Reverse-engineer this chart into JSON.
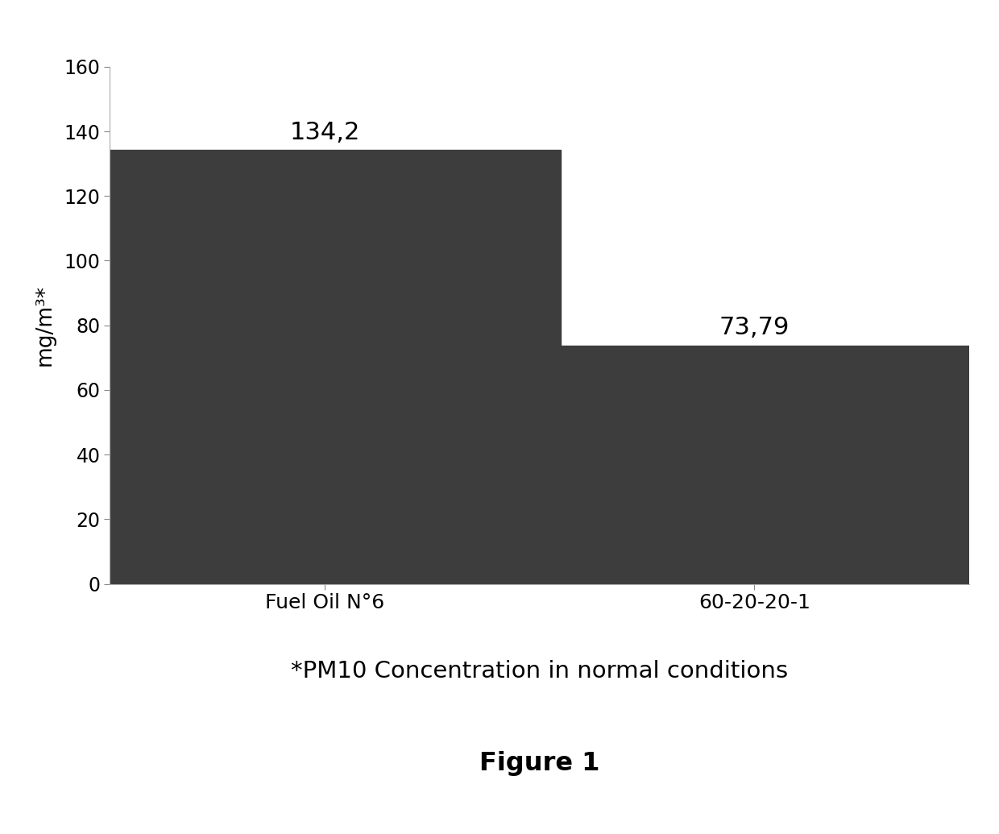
{
  "categories": [
    "Fuel Oil N°6",
    "60-20-20-1"
  ],
  "values": [
    134.2,
    73.79
  ],
  "bar_labels": [
    "134,2",
    "73,79"
  ],
  "bar_color": "#3d3d3d",
  "ylabel": "mg/m³*",
  "ylim": [
    0,
    160
  ],
  "yticks": [
    0,
    20,
    40,
    60,
    80,
    100,
    120,
    140,
    160
  ],
  "subtitle": "*PM10 Concentration in normal conditions",
  "figure_label": "Figure 1",
  "background_color": "#ffffff",
  "bar_width": 0.55,
  "x_positions": [
    0.25,
    0.75
  ],
  "xlim": [
    0,
    1
  ],
  "label_fontsize": 18,
  "tick_fontsize": 17,
  "ylabel_fontsize": 19,
  "subtitle_fontsize": 21,
  "figure_label_fontsize": 23,
  "value_label_fontsize": 22
}
